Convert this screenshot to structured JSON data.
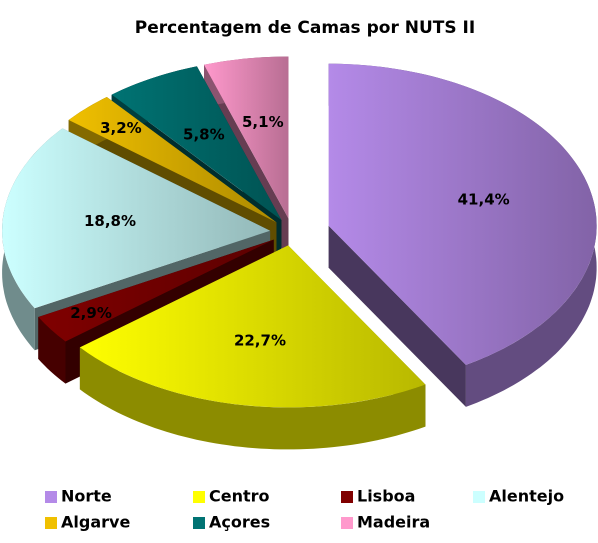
{
  "chart_data": {
    "type": "pie",
    "title": "Percentagem de Camas por NUTS II",
    "categories": [
      "Norte",
      "Centro",
      "Lisboa",
      "Alentejo",
      "Algarve",
      "Açores",
      "Madeira"
    ],
    "values": [
      41.4,
      22.7,
      2.9,
      18.8,
      3.2,
      5.8,
      5.1
    ],
    "value_labels": [
      "41,4%",
      "22,7%",
      "2,9%",
      "18,8%",
      "3,2%",
      "5,8%",
      "5,1%"
    ],
    "colors": [
      "#b48ae8",
      "#ffff00",
      "#800000",
      "#ccffff",
      "#f0c000",
      "#007373",
      "#ff99cc"
    ],
    "legend": "bottom"
  }
}
